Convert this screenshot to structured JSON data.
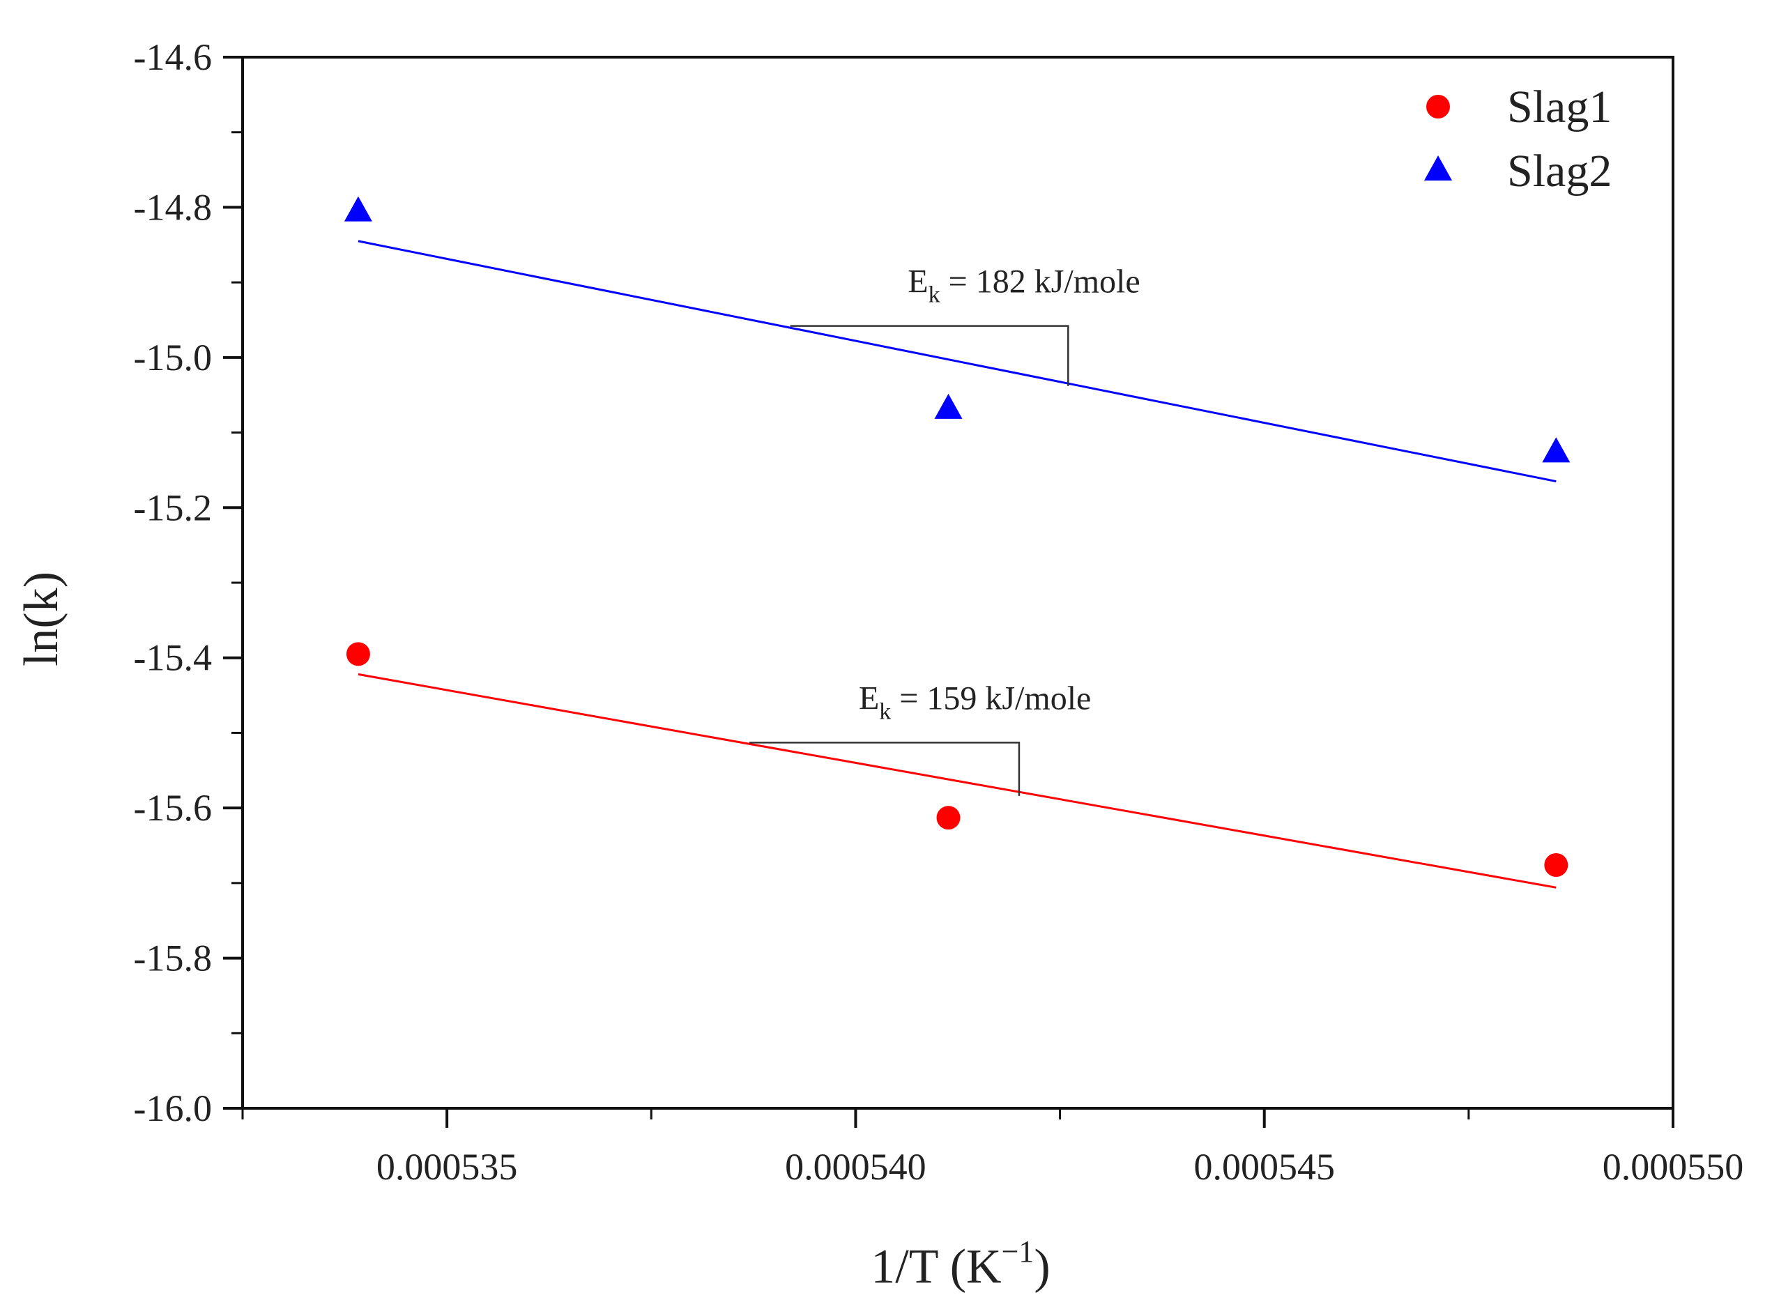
{
  "chart_data": {
    "type": "scatter",
    "title": "",
    "xlabel": {
      "base": "1/T (K",
      "sup": "−1",
      "close": ")"
    },
    "ylabel": "ln(k)",
    "xlim": [
      0.0005325,
      0.00055
    ],
    "ylim": [
      -16.0,
      -14.6
    ],
    "x_ticks": [
      {
        "value": 0.000535,
        "label": "0.000535"
      },
      {
        "value": 0.00054,
        "label": "0.000540"
      },
      {
        "value": 0.000545,
        "label": "0.000545"
      },
      {
        "value": 0.00055,
        "label": "0.000550"
      }
    ],
    "x_minor_ticks": [
      0.0005325,
      0.0005375,
      0.0005425,
      0.0005475
    ],
    "y_ticks": [
      {
        "value": -14.6,
        "label": "-14.6"
      },
      {
        "value": -14.8,
        "label": "-14.8"
      },
      {
        "value": -15.0,
        "label": "-15.0"
      },
      {
        "value": -15.2,
        "label": "-15.2"
      },
      {
        "value": -15.4,
        "label": "-15.4"
      },
      {
        "value": -15.6,
        "label": "-15.6"
      },
      {
        "value": -15.8,
        "label": "-15.8"
      },
      {
        "value": -16.0,
        "label": "-16.0"
      }
    ],
    "y_minor_ticks": [
      -14.7,
      -14.9,
      -15.1,
      -15.3,
      -15.5,
      -15.7,
      -15.9
    ],
    "legend_position": "top-right",
    "series": [
      {
        "name": "Slag1",
        "marker": "circle",
        "color": "#ff0000",
        "points": [
          [
            0.000533915,
            -15.395
          ],
          [
            0.000541135,
            -15.613
          ],
          [
            0.00054857,
            -15.676
          ]
        ],
        "fit": {
          "x": [
            0.000533915,
            0.00054857
          ],
          "y": [
            -15.422,
            -15.706
          ]
        },
        "annotation": {
          "label_main": "E",
          "label_sub": "k",
          "label_rest": " = 159 kJ/mole",
          "tri_x": [
            0.0005387,
            0.000542
          ],
          "tri_y": [
            -15.513,
            -15.584
          ]
        }
      },
      {
        "name": "Slag2",
        "marker": "triangle",
        "color": "#0000ff",
        "points": [
          [
            0.000533915,
            -14.806
          ],
          [
            0.000541135,
            -15.069
          ],
          [
            0.00054857,
            -15.127
          ]
        ],
        "fit": {
          "x": [
            0.000533915,
            0.00054857
          ],
          "y": [
            -14.845,
            -15.165
          ]
        },
        "annotation": {
          "label_main": "E",
          "label_sub": "k",
          "label_rest": " = 182 kJ/mole",
          "tri_x": [
            0.0005392,
            0.0005426
          ],
          "tri_y": [
            -14.958,
            -15.038
          ]
        }
      }
    ]
  }
}
